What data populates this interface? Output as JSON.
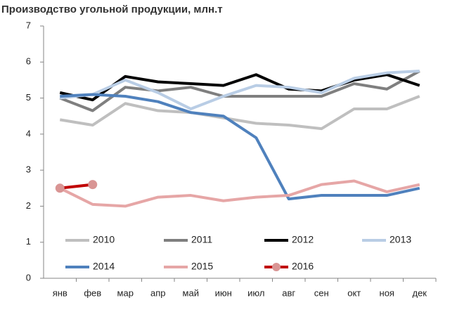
{
  "chart_data": {
    "type": "line",
    "title": "Производство  угольной продукции, млн.т",
    "categories": [
      "янв",
      "фев",
      "мар",
      "апр",
      "май",
      "июн",
      "июл",
      "авг",
      "сен",
      "окт",
      "ноя",
      "дек"
    ],
    "ylim": [
      0,
      7
    ],
    "yticks": [
      0,
      1,
      2,
      3,
      4,
      5,
      6,
      7
    ],
    "grid": false,
    "series": [
      {
        "name": "2010",
        "color": "#bfbfbf",
        "values": [
          4.4,
          4.25,
          4.85,
          4.65,
          4.6,
          4.45,
          4.3,
          4.25,
          4.15,
          4.7,
          4.7,
          5.05
        ]
      },
      {
        "name": "2011",
        "color": "#7f7f7f",
        "values": [
          5.0,
          4.65,
          5.3,
          5.2,
          5.3,
          5.05,
          5.05,
          5.05,
          5.05,
          5.4,
          5.25,
          5.75
        ]
      },
      {
        "name": "2012",
        "color": "#000000",
        "values": [
          5.15,
          4.95,
          5.6,
          5.45,
          5.4,
          5.35,
          5.65,
          5.25,
          5.2,
          5.5,
          5.65,
          5.35
        ]
      },
      {
        "name": "2013",
        "color": "#b9cde5",
        "values": [
          5.0,
          5.1,
          5.5,
          5.15,
          4.7,
          5.05,
          5.35,
          5.3,
          5.15,
          5.55,
          5.7,
          5.75
        ]
      },
      {
        "name": "2014",
        "color": "#4f81bd",
        "values": [
          5.05,
          5.1,
          5.05,
          4.9,
          4.6,
          4.5,
          3.9,
          2.2,
          2.3,
          2.3,
          2.3,
          2.5
        ]
      },
      {
        "name": "2015",
        "color": "#e6a6a6",
        "values": [
          2.5,
          2.05,
          2.0,
          2.25,
          2.3,
          2.15,
          2.25,
          2.3,
          2.6,
          2.7,
          2.4,
          2.6
        ]
      },
      {
        "name": "2016",
        "color": "#c00000",
        "marker_color": "#d99594",
        "markers": true,
        "values": [
          2.5,
          2.6,
          null,
          null,
          null,
          null,
          null,
          null,
          null,
          null,
          null,
          null
        ]
      }
    ]
  }
}
